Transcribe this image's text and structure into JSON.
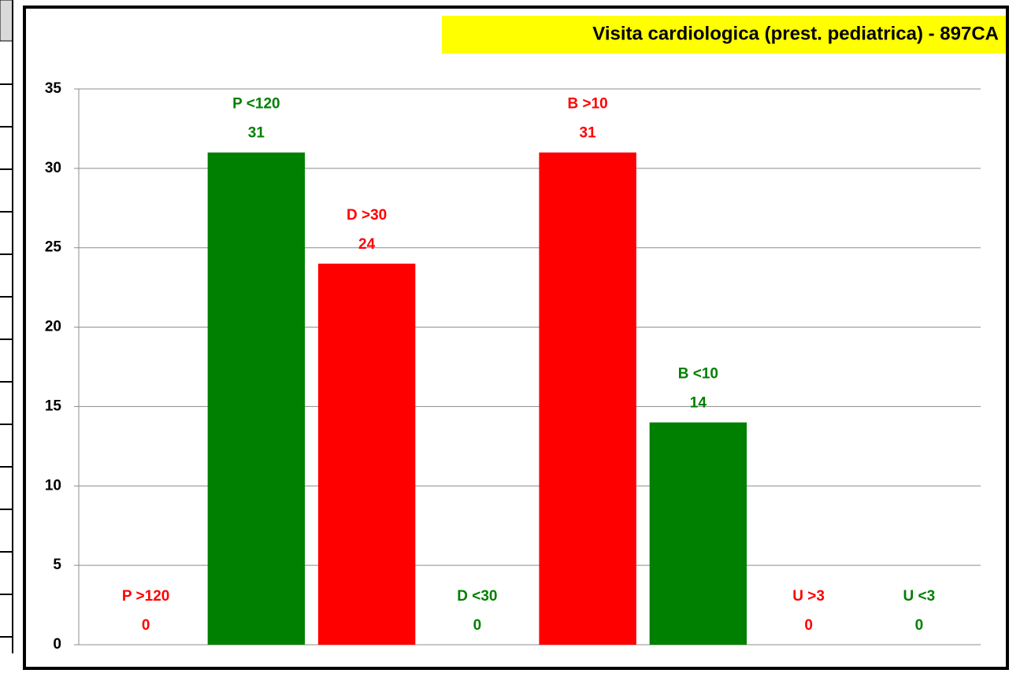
{
  "chart_data": {
    "type": "bar",
    "title": "Visita cardiologica  (prest. pediatrica) - 897CA",
    "categories": [
      "P  >120",
      "P  <120",
      "D  >30",
      "D  <30",
      "B  >10",
      "B  <10",
      "U  >3",
      "U  <3"
    ],
    "values": [
      0,
      31,
      24,
      0,
      31,
      14,
      0,
      0
    ],
    "colors": [
      "#ff0000",
      "#008000",
      "#ff0000",
      "#008000",
      "#ff0000",
      "#008000",
      "#ff0000",
      "#008000"
    ],
    "ylim": [
      0,
      35
    ],
    "yticks": [
      0,
      5,
      10,
      15,
      20,
      25,
      30,
      35
    ],
    "grid": true
  }
}
